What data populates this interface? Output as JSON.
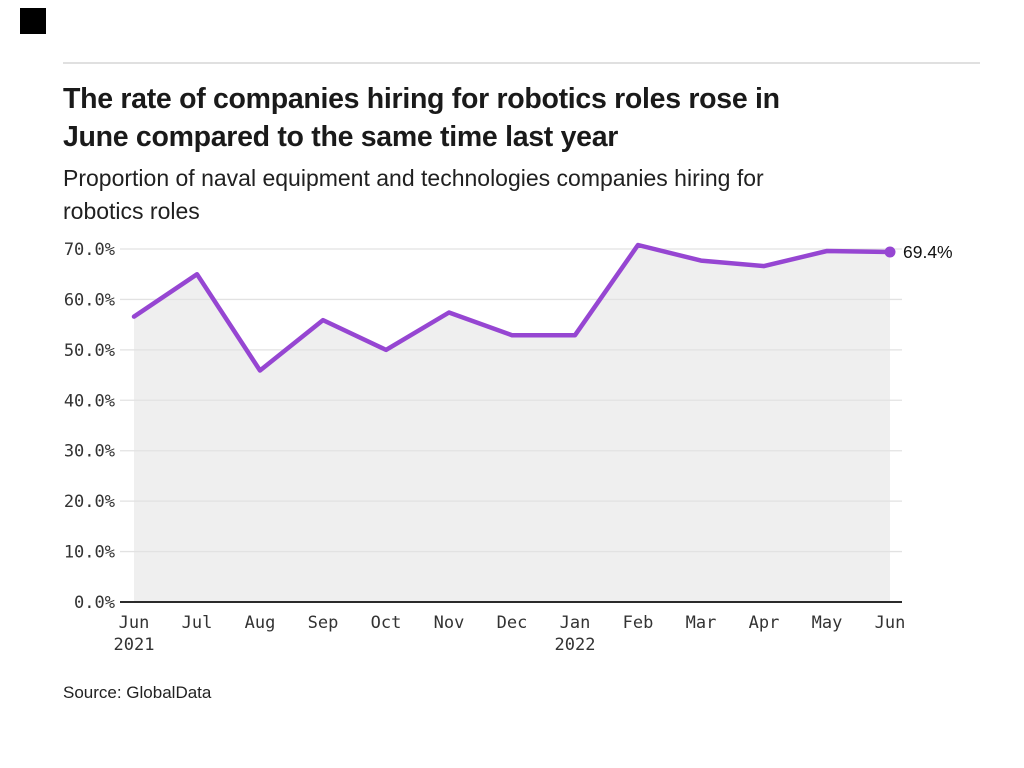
{
  "brand": {
    "logo_icon": "black-square-logo"
  },
  "header": {
    "title_line1": "The rate of companies hiring for robotics roles rose in",
    "title_line2": "June compared to the same time last year",
    "subtitle_line1": "Proportion of naval equipment and technologies companies hiring for",
    "subtitle_line2": "robotics roles"
  },
  "footer": {
    "source": "Source: GlobalData"
  },
  "chart_data": {
    "type": "line",
    "title": "The rate of companies hiring for robotics roles rose in June compared to the same time last year",
    "subtitle": "Proportion of naval equipment and technologies companies hiring for robotics roles",
    "categories": [
      "Jun 2021",
      "Jul",
      "Aug",
      "Sep",
      "Oct",
      "Nov",
      "Dec",
      "Jan 2022",
      "Feb",
      "Mar",
      "Apr",
      "May",
      "Jun"
    ],
    "x_ticks": [
      {
        "label": "Jun",
        "sublabel": "2021"
      },
      {
        "label": "Jul"
      },
      {
        "label": "Aug"
      },
      {
        "label": "Sep"
      },
      {
        "label": "Oct"
      },
      {
        "label": "Nov"
      },
      {
        "label": "Dec"
      },
      {
        "label": "Jan",
        "sublabel": "2022"
      },
      {
        "label": "Feb"
      },
      {
        "label": "Mar"
      },
      {
        "label": "Apr"
      },
      {
        "label": "May"
      },
      {
        "label": "Jun"
      }
    ],
    "series": [
      {
        "name": "Proportion of companies hiring for robotics roles",
        "values": [
          56.6,
          65.0,
          45.9,
          55.9,
          50.0,
          57.4,
          52.9,
          52.9,
          70.8,
          67.7,
          66.6,
          69.6,
          69.4
        ]
      }
    ],
    "ylim": [
      0,
      70
    ],
    "yticks": [
      0,
      10,
      20,
      30,
      40,
      50,
      60,
      70
    ],
    "ytick_labels": [
      "0.0%",
      "10.0%",
      "20.0%",
      "30.0%",
      "40.0%",
      "50.0%",
      "60.0%",
      "70.0%"
    ],
    "end_label": "69.4%",
    "grid": true,
    "legend_position": "none",
    "colors": {
      "line": "#9646d2",
      "endpoint_dot": "#9646d2",
      "area_fill": "#efefef",
      "gridline": "#e2e2e2",
      "baseline": "#2b2b2b",
      "tick_text": "#333333",
      "end_label_text": "#111111"
    }
  }
}
